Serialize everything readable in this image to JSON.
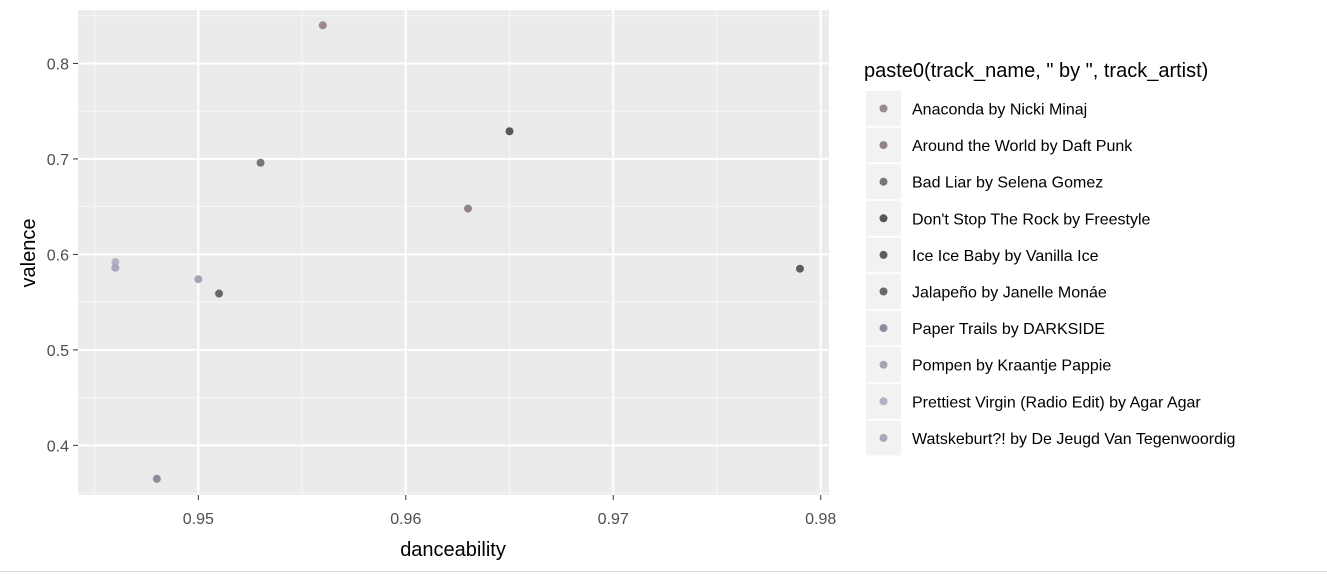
{
  "chart_data": {
    "type": "scatter",
    "xlabel": "danceability",
    "ylabel": "valence",
    "xlim": [
      0.9442,
      0.9804
    ],
    "ylim": [
      0.348,
      0.856
    ],
    "x_ticks": [
      0.95,
      0.96,
      0.97,
      0.98
    ],
    "x_tick_labels": [
      "0.95",
      "0.96",
      "0.97",
      "0.98"
    ],
    "x_minor_ticks": [
      0.945,
      0.955,
      0.965,
      0.975
    ],
    "y_ticks": [
      0.4,
      0.5,
      0.6,
      0.7,
      0.8
    ],
    "y_tick_labels": [
      "0.4",
      "0.5",
      "0.6",
      "0.7",
      "0.8"
    ],
    "y_minor_ticks": [
      0.35,
      0.45,
      0.55,
      0.65,
      0.75,
      0.85
    ],
    "grid": true,
    "background": "#ebebeb",
    "legend": {
      "title": "paste0(track_name, \" by \", track_artist)",
      "placement": "right"
    },
    "series": [
      {
        "name": "Anaconda by Nicki Minaj",
        "color": "#9c8a8e",
        "points": [
          {
            "x": 0.956,
            "y": 0.84
          }
        ]
      },
      {
        "name": "Around the World by Daft Punk",
        "color": "#8f8288",
        "points": [
          {
            "x": 0.963,
            "y": 0.648
          }
        ]
      },
      {
        "name": "Bad Liar by Selena Gomez",
        "color": "#7a7478",
        "points": [
          {
            "x": 0.953,
            "y": 0.696
          }
        ]
      },
      {
        "name": "Don't Stop The Rock by Freestyle",
        "color": "#575759",
        "points": [
          {
            "x": 0.965,
            "y": 0.729
          }
        ]
      },
      {
        "name": "Ice Ice Baby by Vanilla Ice",
        "color": "#5c5e62",
        "points": [
          {
            "x": 0.979,
            "y": 0.585
          }
        ]
      },
      {
        "name": "Jalapeño by Janelle Monáe",
        "color": "#65686c",
        "points": [
          {
            "x": 0.951,
            "y": 0.559
          }
        ]
      },
      {
        "name": "Paper Trails by DARKSIDE",
        "color": "#8c8c9a",
        "points": [
          {
            "x": 0.948,
            "y": 0.365
          }
        ]
      },
      {
        "name": "Pompen by Kraantje Pappie",
        "color": "#a3a5b4",
        "points": [
          {
            "x": 0.95,
            "y": 0.574
          }
        ]
      },
      {
        "name": "Prettiest Virgin (Radio Edit) by Agar Agar",
        "color": "#b0b3c3",
        "points": [
          {
            "x": 0.946,
            "y": 0.592
          }
        ]
      },
      {
        "name": "Watskeburt?! by De Jeugd Van Tegenwoordig",
        "color": "#a6a8bb",
        "points": [
          {
            "x": 0.946,
            "y": 0.586
          }
        ]
      }
    ]
  }
}
